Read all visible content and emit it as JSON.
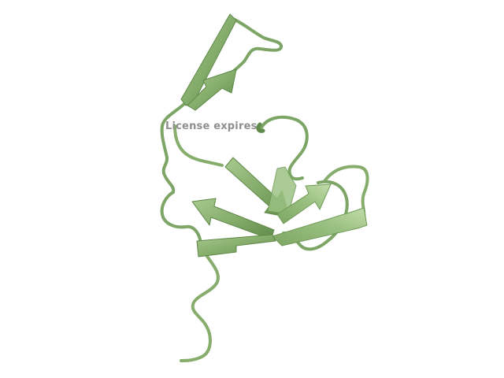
{
  "watermark": {
    "text": "License expires"
  },
  "structure": {
    "kind": "protein-cartoon",
    "style": "beta-sheets-and-loops",
    "color": "#8fb475",
    "shade_color": "#6f9a57",
    "highlight_color": "#b6d09f",
    "background": "#ffffff"
  }
}
